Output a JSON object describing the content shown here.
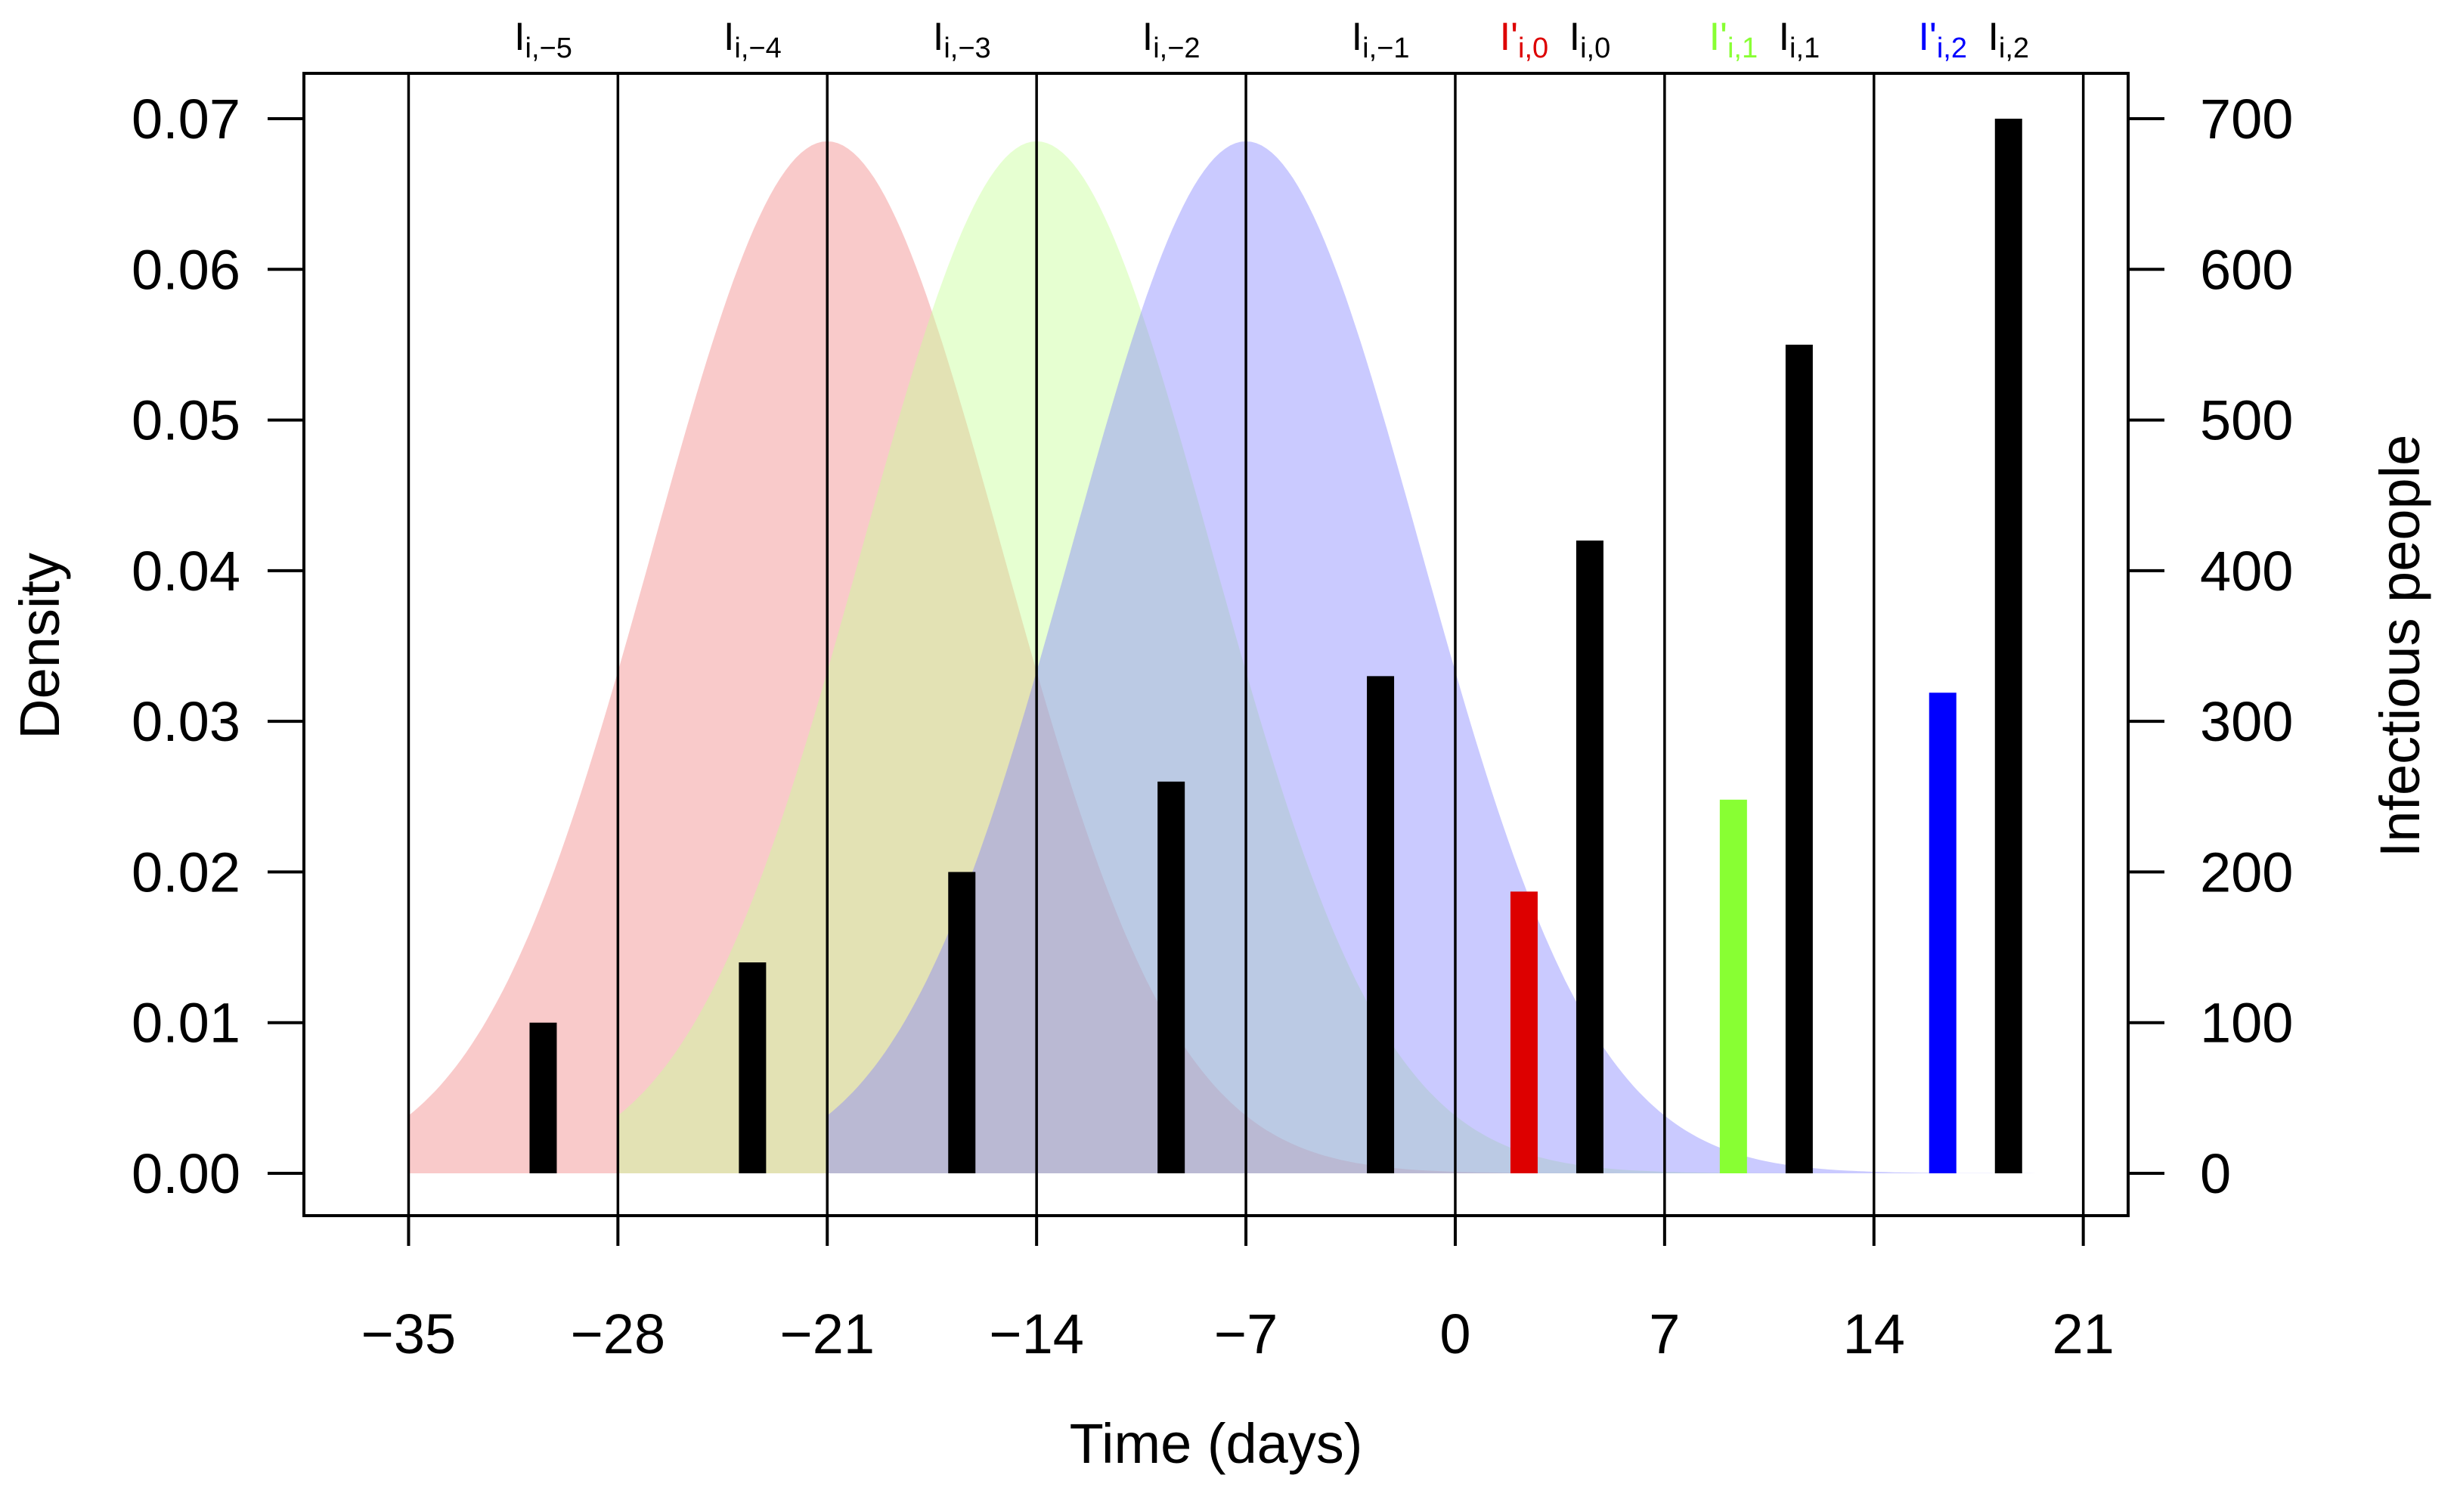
{
  "chart_data": {
    "type": "bar",
    "xlabel": "Time (days)",
    "ylabel_left": "Density",
    "ylabel_right": "Infectious people",
    "xlim": [
      -38.5,
      22.5
    ],
    "ylim_left": [
      0,
      0.07
    ],
    "ylim_right": [
      0,
      700
    ],
    "x_ticks": [
      -35,
      -28,
      -21,
      -14,
      -7,
      0,
      7,
      14,
      21
    ],
    "x_tick_labels": [
      "−35",
      "−28",
      "−21",
      "−14",
      "−7",
      "0",
      "7",
      "14",
      "21"
    ],
    "y_left_ticks": [
      0,
      0.01,
      0.02,
      0.03,
      0.04,
      0.05,
      0.06,
      0.07
    ],
    "y_left_tick_labels": [
      "0.00",
      "0.01",
      "0.02",
      "0.03",
      "0.04",
      "0.05",
      "0.06",
      "0.07"
    ],
    "y_right_ticks": [
      0,
      100,
      200,
      300,
      400,
      500,
      600,
      700
    ],
    "y_right_tick_labels": [
      "0",
      "100",
      "200",
      "300",
      "400",
      "500",
      "600",
      "700"
    ],
    "vertical_lines": [
      -35,
      -28,
      -21,
      -14,
      -7,
      0,
      7,
      14,
      21
    ],
    "densities": [
      {
        "color": "#f08080",
        "opacity": 0.42,
        "range": [
          -35,
          7
        ],
        "mean": -21,
        "sd": 5.83,
        "peak": 0.0685
      },
      {
        "color": "#c8ff9a",
        "opacity": 0.45,
        "range": [
          -28,
          14
        ],
        "mean": -14,
        "sd": 5.83,
        "peak": 0.0685
      },
      {
        "color": "#8080ff",
        "opacity": 0.42,
        "range": [
          -21,
          21
        ],
        "mean": -7,
        "sd": 5.83,
        "peak": 0.0685
      }
    ],
    "series": [
      {
        "name": "I",
        "color": "#000000",
        "x": [
          -30.5,
          -23.5,
          -16.5,
          -9.5,
          -2.5,
          4.5,
          11.5,
          18.5
        ],
        "values": [
          100,
          140,
          200,
          260,
          330,
          420,
          550,
          700
        ]
      },
      {
        "name": "I'",
        "color": "#dd0000",
        "x": [
          2.3
        ],
        "values": [
          187
        ]
      },
      {
        "name": "I'",
        "color": "#88ff33",
        "x": [
          9.3
        ],
        "values": [
          248
        ]
      },
      {
        "name": "I'",
        "color": "#0000ff",
        "x": [
          16.3
        ],
        "values": [
          319
        ]
      }
    ],
    "top_labels": [
      {
        "x": -30.5,
        "base": "I",
        "sub": "i,−5",
        "color": "#000000"
      },
      {
        "x": -23.5,
        "base": "I",
        "sub": "i,−4",
        "color": "#000000"
      },
      {
        "x": -16.5,
        "base": "I",
        "sub": "i,−3",
        "color": "#000000"
      },
      {
        "x": -9.5,
        "base": "I",
        "sub": "i,−2",
        "color": "#000000"
      },
      {
        "x": -2.5,
        "base": "I",
        "sub": "i,−1",
        "color": "#000000"
      },
      {
        "x": 2.3,
        "base": "I'",
        "sub": "i,0",
        "color": "#dd0000"
      },
      {
        "x": 4.5,
        "base": "I",
        "sub": "i,0",
        "color": "#000000"
      },
      {
        "x": 9.3,
        "base": "I'",
        "sub": "i,1",
        "color": "#88ff33"
      },
      {
        "x": 11.5,
        "base": "I",
        "sub": "i,1",
        "color": "#000000"
      },
      {
        "x": 16.3,
        "base": "I'",
        "sub": "i,2",
        "color": "#0000ff"
      },
      {
        "x": 18.5,
        "base": "I",
        "sub": "i,2",
        "color": "#000000"
      }
    ]
  }
}
